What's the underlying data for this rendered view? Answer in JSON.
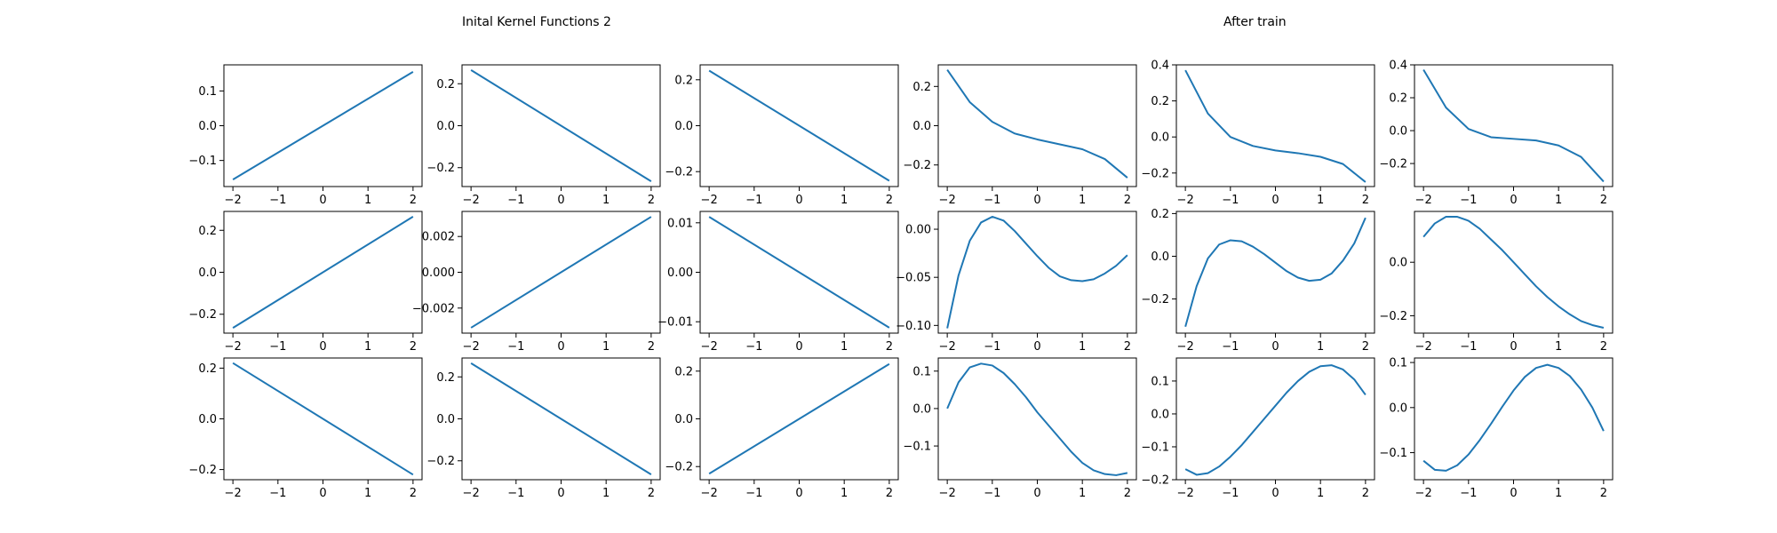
{
  "figure": {
    "title_left": "Inital Kernel Functions 2",
    "title_right": "After train",
    "line_color": "#1f77b4"
  },
  "chart_data": [
    {
      "type": "line",
      "row": 0,
      "col": 0,
      "xlim": [
        -2.2,
        2.2
      ],
      "ylim": [
        -0.175,
        0.175
      ],
      "xticks": [
        -2,
        -1,
        0,
        1,
        2
      ],
      "yticks": [
        -0.1,
        0.0,
        0.1
      ],
      "ytick_labels": [
        "−0.1",
        "0.0",
        "0.1"
      ],
      "x": [
        -2,
        2
      ],
      "y": [
        -0.155,
        0.155
      ]
    },
    {
      "type": "line",
      "row": 0,
      "col": 1,
      "xlim": [
        -2.2,
        2.2
      ],
      "ylim": [
        -0.29,
        0.29
      ],
      "xticks": [
        -2,
        -1,
        0,
        1,
        2
      ],
      "yticks": [
        -0.2,
        0.0,
        0.2
      ],
      "ytick_labels": [
        "−0.2",
        "0.0",
        "0.2"
      ],
      "x": [
        -2,
        2
      ],
      "y": [
        0.265,
        -0.265
      ]
    },
    {
      "type": "line",
      "row": 0,
      "col": 2,
      "xlim": [
        -2.2,
        2.2
      ],
      "ylim": [
        -0.265,
        0.265
      ],
      "xticks": [
        -2,
        -1,
        0,
        1,
        2
      ],
      "yticks": [
        -0.2,
        0.0,
        0.2
      ],
      "ytick_labels": [
        "−0.2",
        "0.0",
        "0.2"
      ],
      "x": [
        -2,
        2
      ],
      "y": [
        0.24,
        -0.24
      ]
    },
    {
      "type": "line",
      "row": 0,
      "col": 3,
      "xlim": [
        -2.2,
        2.2
      ],
      "ylim": [
        -0.31,
        0.31
      ],
      "xticks": [
        -2,
        -1,
        0,
        1,
        2
      ],
      "yticks": [
        -0.2,
        0.0,
        0.2
      ],
      "ytick_labels": [
        "−0.2",
        "0.0",
        "0.2"
      ],
      "x": [
        -2,
        -1.5,
        -1,
        -0.5,
        0,
        0.5,
        1,
        1.5,
        2
      ],
      "y": [
        0.285,
        0.12,
        0.02,
        -0.04,
        -0.07,
        -0.095,
        -0.12,
        -0.17,
        -0.265
      ]
    },
    {
      "type": "line",
      "row": 0,
      "col": 4,
      "xlim": [
        -2.2,
        2.2
      ],
      "ylim": [
        -0.275,
        0.4
      ],
      "xticks": [
        -2,
        -1,
        0,
        1,
        2
      ],
      "yticks": [
        -0.2,
        0.0,
        0.2,
        0.4
      ],
      "ytick_labels": [
        "−0.2",
        "0.0",
        "0.2",
        "0.4"
      ],
      "x": [
        -2,
        -1.5,
        -1,
        -0.5,
        0,
        0.5,
        1,
        1.5,
        2
      ],
      "y": [
        0.37,
        0.13,
        0.0,
        -0.05,
        -0.075,
        -0.09,
        -0.11,
        -0.15,
        -0.25
      ]
    },
    {
      "type": "line",
      "row": 0,
      "col": 5,
      "xlim": [
        -2.2,
        2.2
      ],
      "ylim": [
        -0.34,
        0.4
      ],
      "xticks": [
        -2,
        -1,
        0,
        1,
        2
      ],
      "yticks": [
        -0.2,
        0.0,
        0.2,
        0.4
      ],
      "ytick_labels": [
        "−0.2",
        "0.0",
        "0.2",
        "0.4"
      ],
      "x": [
        -2,
        -1.5,
        -1,
        -0.5,
        0,
        0.5,
        1,
        1.5,
        2
      ],
      "y": [
        0.37,
        0.14,
        0.01,
        -0.04,
        -0.05,
        -0.06,
        -0.09,
        -0.16,
        -0.31
      ]
    },
    {
      "type": "line",
      "row": 1,
      "col": 0,
      "xlim": [
        -2.2,
        2.2
      ],
      "ylim": [
        -0.29,
        0.29
      ],
      "xticks": [
        -2,
        -1,
        0,
        1,
        2
      ],
      "yticks": [
        -0.2,
        0.0,
        0.2
      ],
      "ytick_labels": [
        "−0.2",
        "0.0",
        "0.2"
      ],
      "x": [
        -2,
        2
      ],
      "y": [
        -0.265,
        0.265
      ]
    },
    {
      "type": "line",
      "row": 1,
      "col": 1,
      "xlim": [
        -2.2,
        2.2
      ],
      "ylim": [
        -0.0034,
        0.0034
      ],
      "xticks": [
        -2,
        -1,
        0,
        1,
        2
      ],
      "yticks": [
        -0.002,
        0.0,
        0.002
      ],
      "ytick_labels": [
        "−0.002",
        "0.000",
        "0.002"
      ],
      "x": [
        -2,
        2
      ],
      "y": [
        -0.0031,
        0.0031
      ]
    },
    {
      "type": "line",
      "row": 1,
      "col": 2,
      "xlim": [
        -2.2,
        2.2
      ],
      "ylim": [
        -0.0123,
        0.0123
      ],
      "xticks": [
        -2,
        -1,
        0,
        1,
        2
      ],
      "yticks": [
        -0.01,
        0.0,
        0.01
      ],
      "ytick_labels": [
        "−0.01",
        "0.00",
        "0.01"
      ],
      "x": [
        -2,
        2
      ],
      "y": [
        0.0112,
        -0.0112
      ]
    },
    {
      "type": "line",
      "row": 1,
      "col": 3,
      "xlim": [
        -2.2,
        2.2
      ],
      "ylim": [
        -0.108,
        0.0185
      ],
      "xticks": [
        -2,
        -1,
        0,
        1,
        2
      ],
      "yticks": [
        -0.1,
        -0.05,
        0.0
      ],
      "ytick_labels": [
        "−0.10",
        "−0.05",
        "0.00"
      ],
      "x": [
        -2,
        -1.75,
        -1.5,
        -1.25,
        -1,
        -0.75,
        -0.5,
        -0.25,
        0,
        0.25,
        0.5,
        0.75,
        1,
        1.25,
        1.5,
        1.75,
        2
      ],
      "y": [
        -0.103,
        -0.048,
        -0.012,
        0.007,
        0.013,
        0.009,
        -0.002,
        -0.015,
        -0.028,
        -0.04,
        -0.049,
        -0.053,
        -0.054,
        -0.052,
        -0.046,
        -0.038,
        -0.027
      ]
    },
    {
      "type": "line",
      "row": 1,
      "col": 4,
      "xlim": [
        -2.2,
        2.2
      ],
      "ylim": [
        -0.36,
        0.21
      ],
      "xticks": [
        -2,
        -1,
        0,
        1,
        2
      ],
      "yticks": [
        -0.2,
        0.0,
        0.2
      ],
      "ytick_labels": [
        "−0.2",
        "0.0",
        "0.2"
      ],
      "x": [
        -2,
        -1.75,
        -1.5,
        -1.25,
        -1,
        -0.75,
        -0.5,
        -0.25,
        0,
        0.25,
        0.5,
        0.75,
        1,
        1.25,
        1.5,
        1.75,
        2
      ],
      "y": [
        -0.33,
        -0.14,
        -0.01,
        0.055,
        0.075,
        0.07,
        0.045,
        0.01,
        -0.03,
        -0.07,
        -0.1,
        -0.115,
        -0.11,
        -0.08,
        -0.02,
        0.06,
        0.18
      ]
    },
    {
      "type": "line",
      "row": 1,
      "col": 5,
      "xlim": [
        -2.2,
        2.2
      ],
      "ylim": [
        -0.265,
        0.19
      ],
      "xticks": [
        -2,
        -1,
        0,
        1,
        2
      ],
      "yticks": [
        -0.2,
        0.0
      ],
      "ytick_labels": [
        "−0.2",
        "0.0"
      ],
      "x": [
        -2,
        -1.75,
        -1.5,
        -1.25,
        -1,
        -0.75,
        -0.5,
        -0.25,
        0,
        0.25,
        0.5,
        0.75,
        1,
        1.25,
        1.5,
        1.75,
        2
      ],
      "y": [
        0.095,
        0.145,
        0.17,
        0.17,
        0.155,
        0.125,
        0.085,
        0.045,
        0.0,
        -0.045,
        -0.09,
        -0.13,
        -0.165,
        -0.195,
        -0.22,
        -0.235,
        -0.245
      ]
    },
    {
      "type": "line",
      "row": 2,
      "col": 0,
      "xlim": [
        -2.2,
        2.2
      ],
      "ylim": [
        -0.24,
        0.24
      ],
      "xticks": [
        -2,
        -1,
        0,
        1,
        2
      ],
      "yticks": [
        -0.2,
        0.0,
        0.2
      ],
      "ytick_labels": [
        "−0.2",
        "0.0",
        "0.2"
      ],
      "x": [
        -2,
        2
      ],
      "y": [
        0.22,
        -0.22
      ]
    },
    {
      "type": "line",
      "row": 2,
      "col": 1,
      "xlim": [
        -2.2,
        2.2
      ],
      "ylim": [
        -0.29,
        0.29
      ],
      "xticks": [
        -2,
        -1,
        0,
        1,
        2
      ],
      "yticks": [
        -0.2,
        0.0,
        0.2
      ],
      "ytick_labels": [
        "−0.2",
        "0.0",
        "0.2"
      ],
      "x": [
        -2,
        2
      ],
      "y": [
        0.265,
        -0.265
      ]
    },
    {
      "type": "line",
      "row": 2,
      "col": 2,
      "xlim": [
        -2.2,
        2.2
      ],
      "ylim": [
        -0.255,
        0.255
      ],
      "xticks": [
        -2,
        -1,
        0,
        1,
        2
      ],
      "yticks": [
        -0.2,
        0.0,
        0.2
      ],
      "ytick_labels": [
        "−0.2",
        "0.0",
        "0.2"
      ],
      "x": [
        -2,
        2
      ],
      "y": [
        -0.23,
        0.23
      ]
    },
    {
      "type": "line",
      "row": 2,
      "col": 3,
      "xlim": [
        -2.2,
        2.2
      ],
      "ylim": [
        -0.19,
        0.135
      ],
      "xticks": [
        -2,
        -1,
        0,
        1,
        2
      ],
      "yticks": [
        -0.1,
        0.0,
        0.1
      ],
      "ytick_labels": [
        "−0.1",
        "0.0",
        "0.1"
      ],
      "x": [
        -2,
        -1.75,
        -1.5,
        -1.25,
        -1,
        -0.75,
        -0.5,
        -0.25,
        0,
        0.25,
        0.5,
        0.75,
        1,
        1.25,
        1.5,
        1.75,
        2
      ],
      "y": [
        0.0,
        0.07,
        0.11,
        0.12,
        0.115,
        0.095,
        0.065,
        0.03,
        -0.01,
        -0.045,
        -0.08,
        -0.115,
        -0.145,
        -0.165,
        -0.175,
        -0.178,
        -0.172
      ]
    },
    {
      "type": "line",
      "row": 2,
      "col": 4,
      "xlim": [
        -2.2,
        2.2
      ],
      "ylim": [
        -0.2,
        0.17
      ],
      "xticks": [
        -2,
        -1,
        0,
        1,
        2
      ],
      "yticks": [
        -0.2,
        -0.1,
        0.0,
        0.1
      ],
      "ytick_labels": [
        "−0.2",
        "−0.1",
        "0.0",
        "0.1"
      ],
      "x": [
        -2,
        -1.75,
        -1.5,
        -1.25,
        -1,
        -0.75,
        -0.5,
        -0.25,
        0,
        0.25,
        0.5,
        0.75,
        1,
        1.25,
        1.5,
        1.75,
        2
      ],
      "y": [
        -0.168,
        -0.185,
        -0.18,
        -0.16,
        -0.13,
        -0.095,
        -0.055,
        -0.015,
        0.025,
        0.065,
        0.1,
        0.128,
        0.145,
        0.148,
        0.135,
        0.105,
        0.058
      ]
    },
    {
      "type": "line",
      "row": 2,
      "col": 5,
      "xlim": [
        -2.2,
        2.2
      ],
      "ylim": [
        -0.16,
        0.11
      ],
      "xticks": [
        -2,
        -1,
        0,
        1,
        2
      ],
      "yticks": [
        -0.1,
        0.0,
        0.1
      ],
      "ytick_labels": [
        "−0.1",
        "0.0",
        "0.1"
      ],
      "x": [
        -2,
        -1.75,
        -1.5,
        -1.25,
        -1,
        -0.75,
        -0.5,
        -0.25,
        0,
        0.25,
        0.5,
        0.75,
        1,
        1.25,
        1.5,
        1.75,
        2
      ],
      "y": [
        -0.118,
        -0.138,
        -0.14,
        -0.128,
        -0.104,
        -0.072,
        -0.036,
        0.002,
        0.038,
        0.068,
        0.088,
        0.095,
        0.088,
        0.07,
        0.04,
        0.0,
        -0.052
      ]
    }
  ]
}
